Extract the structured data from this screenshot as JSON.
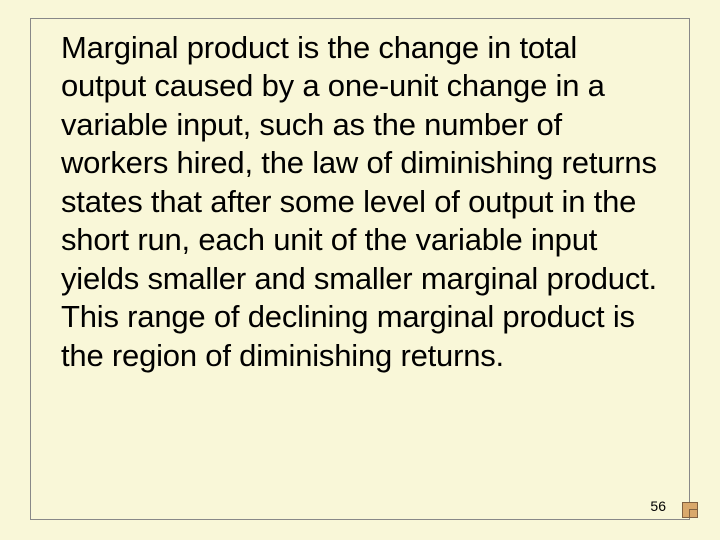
{
  "slide": {
    "background_color": "#f9f7d8",
    "border_color": "#888888",
    "text_color": "#000000",
    "font_family": "Arial",
    "body_fontsize": 31,
    "line_height": 1.24,
    "body_text": "Marginal product is the change in total output caused by a one-unit change in a variable input, such as the number of workers hired, the law of diminishing returns states that after some level of output in the short run, each unit of the variable input yields smaller and smaller marginal product. This range of declining marginal product is the region of diminishing returns.",
    "page_number": "56",
    "corner_mark_color": "#d9a86b",
    "corner_mark_border": "#806040"
  }
}
